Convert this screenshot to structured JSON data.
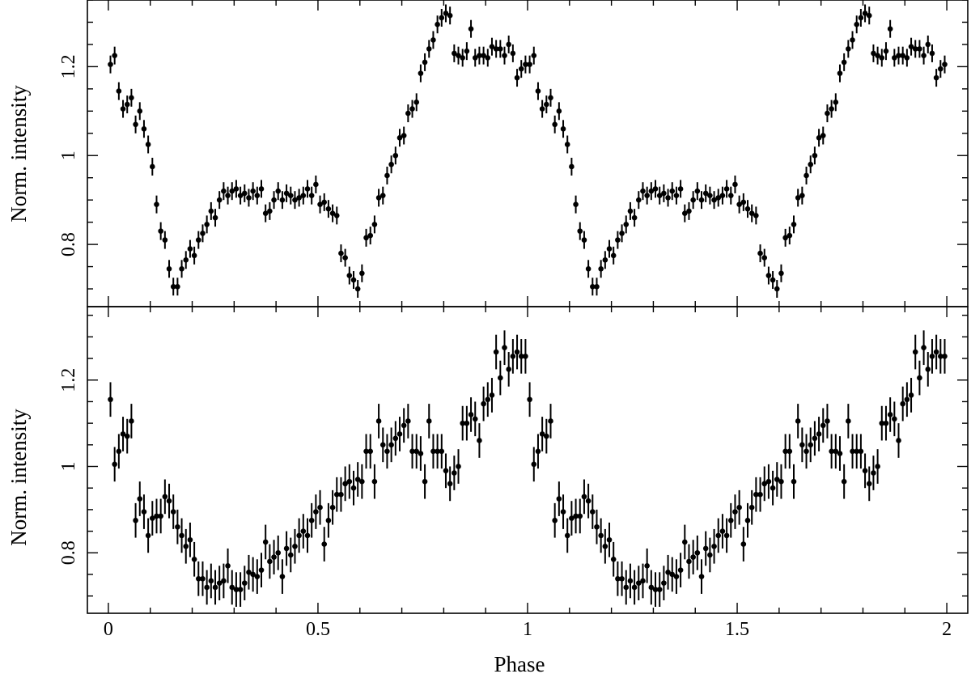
{
  "chart_data": [
    {
      "type": "scatter",
      "panel": "top",
      "xlabel": "",
      "ylabel": "Norm. intensity",
      "xlim": [
        -0.05,
        2.05
      ],
      "ylim": [
        0.66,
        1.35
      ],
      "x_ticks": [
        0,
        0.5,
        1,
        1.5,
        2
      ],
      "y_ticks": [
        0.8,
        1,
        1.2
      ],
      "y_tick_labels": [
        "0.8",
        "1",
        "1.2"
      ],
      "error_bar_y": 0.02,
      "grid": false,
      "profile_period": 1,
      "x": [
        0.005,
        0.015,
        0.025,
        0.035,
        0.045,
        0.055,
        0.065,
        0.075,
        0.085,
        0.095,
        0.105,
        0.115,
        0.125,
        0.135,
        0.145,
        0.155,
        0.165,
        0.175,
        0.185,
        0.195,
        0.205,
        0.215,
        0.225,
        0.235,
        0.245,
        0.255,
        0.265,
        0.275,
        0.285,
        0.295,
        0.305,
        0.315,
        0.325,
        0.335,
        0.345,
        0.355,
        0.365,
        0.375,
        0.385,
        0.395,
        0.405,
        0.415,
        0.425,
        0.435,
        0.445,
        0.455,
        0.465,
        0.475,
        0.485,
        0.495,
        0.505,
        0.515,
        0.525,
        0.535,
        0.545,
        0.555,
        0.565,
        0.575,
        0.585,
        0.595,
        0.605,
        0.615,
        0.625,
        0.635,
        0.645,
        0.655,
        0.665,
        0.675,
        0.685,
        0.695,
        0.705,
        0.715,
        0.725,
        0.735,
        0.745,
        0.755,
        0.765,
        0.775,
        0.785,
        0.795,
        0.805,
        0.815,
        0.825,
        0.835,
        0.845,
        0.855,
        0.865,
        0.875,
        0.885,
        0.895,
        0.905,
        0.915,
        0.925,
        0.935,
        0.945,
        0.955,
        0.965,
        0.975,
        0.985,
        0.995
      ],
      "y": [
        1.205,
        1.225,
        1.145,
        1.105,
        1.115,
        1.13,
        1.07,
        1.1,
        1.06,
        1.025,
        0.975,
        0.89,
        0.83,
        0.81,
        0.745,
        0.705,
        0.705,
        0.745,
        0.765,
        0.79,
        0.775,
        0.81,
        0.825,
        0.845,
        0.875,
        0.86,
        0.9,
        0.92,
        0.91,
        0.92,
        0.925,
        0.91,
        0.915,
        0.905,
        0.92,
        0.91,
        0.925,
        0.87,
        0.875,
        0.9,
        0.92,
        0.9,
        0.915,
        0.91,
        0.9,
        0.905,
        0.91,
        0.925,
        0.91,
        0.935,
        0.89,
        0.895,
        0.88,
        0.87,
        0.865,
        0.78,
        0.77,
        0.73,
        0.72,
        0.7,
        0.735,
        0.815,
        0.82,
        0.845,
        0.905,
        0.91,
        0.955,
        0.98,
        1.0,
        1.04,
        1.045,
        1.095,
        1.105,
        1.12,
        1.185,
        1.21,
        1.24,
        1.26,
        1.295,
        1.31,
        1.32,
        1.315,
        1.23,
        1.225,
        1.22,
        1.235,
        1.285,
        1.22,
        1.225,
        1.225,
        1.22,
        1.245,
        1.24,
        1.24,
        1.225,
        1.25,
        1.23,
        1.175,
        1.195,
        1.205
      ]
    },
    {
      "type": "scatter",
      "panel": "bottom",
      "xlabel": "Phase",
      "ylabel": "Norm. intensity",
      "xlim": [
        -0.05,
        2.05
      ],
      "ylim": [
        0.66,
        1.37
      ],
      "x_ticks": [
        0,
        0.5,
        1,
        1.5,
        2
      ],
      "x_tick_labels": [
        "0",
        "0.5",
        "1",
        "1.5",
        "2"
      ],
      "y_ticks": [
        0.8,
        1,
        1.2
      ],
      "y_tick_labels": [
        "0.8",
        "1",
        "1.2"
      ],
      "error_bar_y": 0.04,
      "grid": false,
      "profile_period": 1,
      "x": [
        0.005,
        0.015,
        0.025,
        0.035,
        0.045,
        0.055,
        0.065,
        0.075,
        0.085,
        0.095,
        0.105,
        0.115,
        0.125,
        0.135,
        0.145,
        0.155,
        0.165,
        0.175,
        0.185,
        0.195,
        0.205,
        0.215,
        0.225,
        0.235,
        0.245,
        0.255,
        0.265,
        0.275,
        0.285,
        0.295,
        0.305,
        0.315,
        0.325,
        0.335,
        0.345,
        0.355,
        0.365,
        0.375,
        0.385,
        0.395,
        0.405,
        0.415,
        0.425,
        0.435,
        0.445,
        0.455,
        0.465,
        0.475,
        0.485,
        0.495,
        0.505,
        0.515,
        0.525,
        0.535,
        0.545,
        0.555,
        0.565,
        0.575,
        0.585,
        0.595,
        0.605,
        0.615,
        0.625,
        0.635,
        0.645,
        0.655,
        0.665,
        0.675,
        0.685,
        0.695,
        0.705,
        0.715,
        0.725,
        0.735,
        0.745,
        0.755,
        0.765,
        0.775,
        0.785,
        0.795,
        0.805,
        0.815,
        0.825,
        0.835,
        0.845,
        0.855,
        0.865,
        0.875,
        0.885,
        0.895,
        0.905,
        0.915,
        0.925,
        0.935,
        0.945,
        0.955,
        0.965,
        0.975,
        0.985,
        0.995
      ],
      "y": [
        1.155,
        1.005,
        1.035,
        1.075,
        1.07,
        1.105,
        0.875,
        0.925,
        0.895,
        0.84,
        0.88,
        0.885,
        0.885,
        0.93,
        0.92,
        0.895,
        0.86,
        0.84,
        0.815,
        0.83,
        0.785,
        0.74,
        0.74,
        0.72,
        0.735,
        0.72,
        0.73,
        0.735,
        0.77,
        0.72,
        0.715,
        0.715,
        0.73,
        0.755,
        0.75,
        0.745,
        0.76,
        0.825,
        0.78,
        0.79,
        0.8,
        0.745,
        0.81,
        0.795,
        0.815,
        0.84,
        0.85,
        0.84,
        0.875,
        0.895,
        0.905,
        0.82,
        0.875,
        0.905,
        0.935,
        0.935,
        0.96,
        0.965,
        0.95,
        0.97,
        0.965,
        1.035,
        1.035,
        0.965,
        1.105,
        1.05,
        1.035,
        1.05,
        1.065,
        1.075,
        1.095,
        1.105,
        1.035,
        1.035,
        1.03,
        0.965,
        1.105,
        1.035,
        1.035,
        1.035,
        0.99,
        0.96,
        0.985,
        1.0,
        1.1,
        1.1,
        1.12,
        1.11,
        1.06,
        1.145,
        1.155,
        1.165,
        1.265,
        1.205,
        1.275,
        1.225,
        1.255,
        1.265,
        1.255,
        1.255
      ]
    }
  ],
  "labels": {
    "top_ylabel": "Norm. intensity",
    "bottom_ylabel": "Norm. intensity",
    "xlabel": "Phase",
    "x_tick_labels": [
      "0",
      "0.5",
      "1",
      "1.5",
      "2"
    ],
    "top_y_tick_labels": [
      "0.8",
      "1",
      "1.2"
    ],
    "bottom_y_tick_labels": [
      "0.8",
      "1",
      "1.2"
    ]
  }
}
